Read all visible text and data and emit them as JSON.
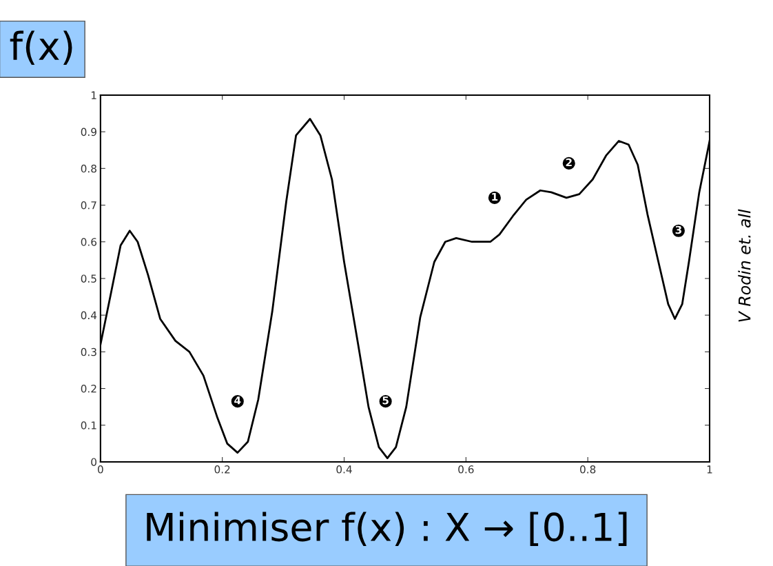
{
  "chart_data": {
    "type": "line",
    "title": "f(x)",
    "xlabel": "Minimiser f(x) : X → [0..1]",
    "x": [
      0,
      0.016,
      0.033,
      0.048,
      0.061,
      0.078,
      0.098,
      0.123,
      0.146,
      0.169,
      0.192,
      0.208,
      0.225,
      0.242,
      0.259,
      0.282,
      0.305,
      0.321,
      0.344,
      0.361,
      0.38,
      0.4,
      0.423,
      0.44,
      0.457,
      0.471,
      0.485,
      0.502,
      0.525,
      0.548,
      0.566,
      0.584,
      0.61,
      0.64,
      0.655,
      0.677,
      0.699,
      0.722,
      0.74,
      0.765,
      0.786,
      0.808,
      0.83,
      0.851,
      0.867,
      0.882,
      0.898,
      0.916,
      0.932,
      0.943,
      0.955,
      0.966,
      0.983,
      1.0
    ],
    "series": [
      {
        "color": "#000000",
        "values": [
          0.32,
          0.45,
          0.59,
          0.63,
          0.6,
          0.51,
          0.39,
          0.33,
          0.3,
          0.235,
          0.12,
          0.05,
          0.025,
          0.055,
          0.17,
          0.41,
          0.71,
          0.89,
          0.935,
          0.89,
          0.77,
          0.545,
          0.32,
          0.15,
          0.04,
          0.01,
          0.04,
          0.15,
          0.395,
          0.545,
          0.6,
          0.61,
          0.6,
          0.6,
          0.62,
          0.67,
          0.715,
          0.74,
          0.735,
          0.72,
          0.73,
          0.77,
          0.835,
          0.875,
          0.865,
          0.81,
          0.675,
          0.545,
          0.43,
          0.39,
          0.43,
          0.545,
          0.735,
          0.875
        ]
      }
    ],
    "xlim": [
      0,
      1
    ],
    "ylim": [
      0,
      1
    ],
    "xticks": [
      0,
      0.2,
      0.4,
      0.6,
      0.8,
      1
    ],
    "yticks": [
      0,
      0.1,
      0.2,
      0.3,
      0.4,
      0.5,
      0.6,
      0.7,
      0.8,
      0.9,
      1
    ],
    "grid": false,
    "legend": false,
    "marker": "none",
    "line_style": "solid",
    "annotations": [
      {
        "text": "1",
        "x": 0.647,
        "y": 0.72
      },
      {
        "text": "2",
        "x": 0.769,
        "y": 0.814
      },
      {
        "text": "3",
        "x": 0.949,
        "y": 0.63
      },
      {
        "text": "4",
        "x": 0.225,
        "y": 0.165
      },
      {
        "text": "5",
        "x": 0.468,
        "y": 0.165
      },
      "V Rodin et. all"
    ]
  }
}
